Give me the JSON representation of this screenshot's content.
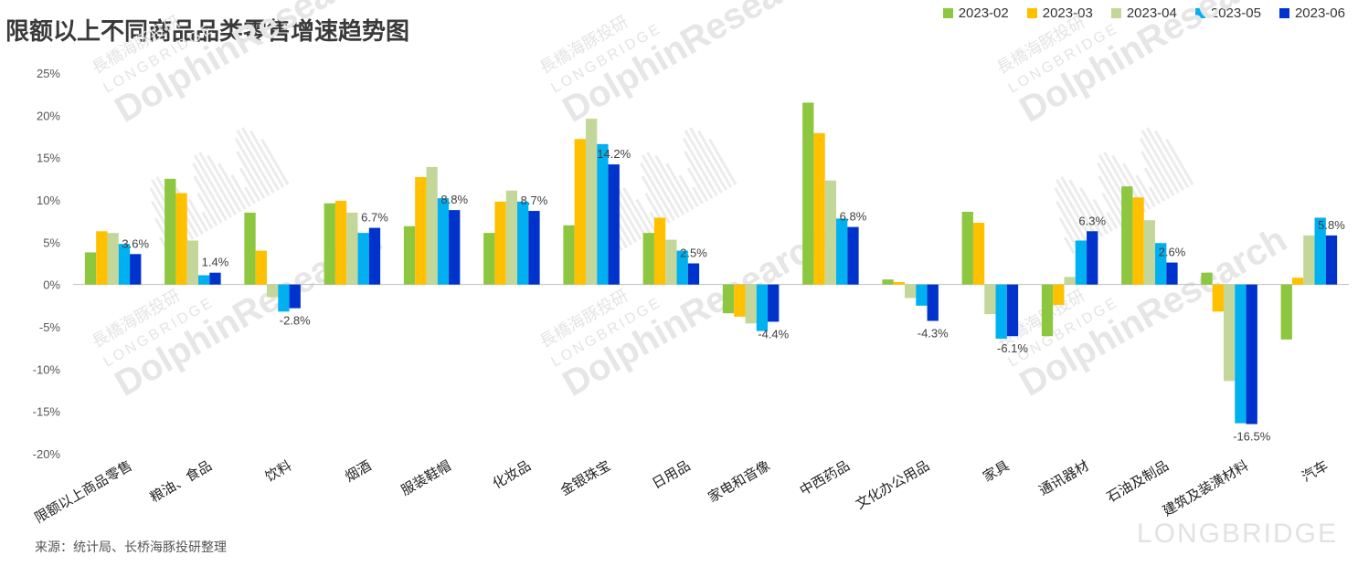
{
  "title": "限额以上不同商品品类零售增速趋势图",
  "source_note": "来源：统计局、长桥海豚投研整理",
  "watermark": {
    "brand": "LONGBRIDGE",
    "cn": "長橋海豚投研",
    "en_upper": "LONGBRIDGE",
    "en_main": "DolphinResearch"
  },
  "chart_data": {
    "type": "bar",
    "title": "限额以上不同商品品类零售增速趋势图",
    "xlabel": "",
    "ylabel": "",
    "ylim": [
      -20,
      25
    ],
    "yticks": [
      25,
      20,
      15,
      10,
      5,
      0,
      -5,
      -10,
      -15,
      -20
    ],
    "ytick_labels": [
      "25%",
      "20%",
      "15%",
      "10%",
      "5%",
      "0%",
      "-5%",
      "-10%",
      "-15%",
      "-20%"
    ],
    "grid": false,
    "legend_position": "top-right",
    "categories": [
      "限额以上商品零售",
      "粮油、食品",
      "饮料",
      "烟酒",
      "服装鞋帽",
      "化妆品",
      "金银珠宝",
      "日用品",
      "家电和音像",
      "中西药品",
      "文化办公用品",
      "家具",
      "通讯器材",
      "石油及制品",
      "建筑及装潢材料",
      "汽车"
    ],
    "series": [
      {
        "name": "2023-02",
        "color": "#8DC63F",
        "values": [
          3.8,
          12.5,
          8.5,
          9.6,
          6.9,
          6.1,
          7.0,
          6.1,
          -3.4,
          21.5,
          0.6,
          8.6,
          -6.1,
          11.6,
          1.4,
          -6.5
        ]
      },
      {
        "name": "2023-03",
        "color": "#FFC000",
        "values": [
          6.3,
          10.8,
          4.0,
          9.9,
          12.7,
          9.8,
          17.2,
          7.9,
          -3.8,
          17.9,
          0.3,
          7.3,
          -2.4,
          10.3,
          -3.2,
          0.8
        ]
      },
      {
        "name": "2023-04",
        "color": "#C4D79B",
        "values": [
          6.1,
          5.2,
          -1.5,
          8.5,
          13.9,
          11.1,
          19.6,
          5.3,
          -4.6,
          12.3,
          -1.6,
          -3.5,
          0.9,
          7.6,
          -11.4,
          5.8
        ]
      },
      {
        "name": "2023-05",
        "color": "#00B0F0",
        "values": [
          4.8,
          1.1,
          -3.2,
          6.1,
          10.2,
          9.8,
          16.6,
          4.0,
          -5.5,
          7.8,
          -2.5,
          -6.4,
          5.2,
          4.9,
          -16.4,
          7.9
        ]
      },
      {
        "name": "2023-06",
        "color": "#0033CC",
        "values": [
          3.6,
          1.4,
          -2.8,
          6.7,
          8.8,
          8.7,
          14.2,
          2.5,
          -4.4,
          6.8,
          -4.3,
          -6.1,
          6.3,
          2.6,
          -16.5,
          5.8
        ]
      }
    ],
    "data_labels": [
      "3.6%",
      "1.4%",
      "-2.8%",
      "6.7%",
      "8.8%",
      "8.7%",
      "14.2%",
      "2.5%",
      "-4.4%",
      "6.8%",
      "-4.3%",
      "-6.1%",
      "6.3%",
      "2.6%",
      "-16.5%",
      "5.8%"
    ]
  }
}
